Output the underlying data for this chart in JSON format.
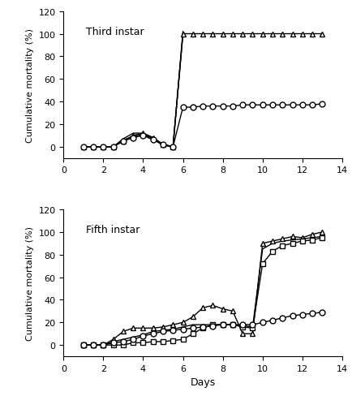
{
  "title_top": "Third instar",
  "title_bottom": "Fifth instar",
  "ylabel": "Cumulative mortality (%)",
  "xlabel": "Days",
  "ylim": [
    -10,
    120
  ],
  "xlim": [
    0,
    14
  ],
  "yticks": [
    0,
    20,
    40,
    60,
    80,
    100,
    120
  ],
  "xticks": [
    0,
    2,
    4,
    6,
    8,
    10,
    12,
    14
  ],
  "top_triangle": {
    "x": [
      1,
      1.5,
      2,
      2.5,
      3,
      3.5,
      4,
      4.5,
      5,
      5.5,
      6,
      6.5,
      7,
      7.5,
      8,
      8.5,
      9,
      9.5,
      10,
      10.5,
      11,
      11.5,
      12,
      12.5,
      13
    ],
    "y": [
      0,
      0,
      0,
      0,
      5,
      10,
      12,
      8,
      2,
      0,
      100,
      100,
      100,
      100,
      100,
      100,
      100,
      100,
      100,
      100,
      100,
      100,
      100,
      100,
      100
    ]
  },
  "top_circle": {
    "x": [
      1,
      1.5,
      2,
      2.5,
      3,
      3.5,
      4,
      4.5,
      5,
      5.5,
      6,
      6.5,
      7,
      7.5,
      8,
      8.5,
      9,
      9.5,
      10,
      10.5,
      11,
      11.5,
      12,
      12.5,
      13
    ],
    "y": [
      0,
      0,
      0,
      0,
      5,
      8,
      10,
      6,
      2,
      0,
      35,
      35,
      36,
      36,
      36,
      36,
      37,
      37,
      37,
      37,
      37,
      37,
      37,
      37,
      38
    ]
  },
  "top_extra1": {
    "x": [
      1,
      1.5,
      2,
      2.5,
      3,
      3.5,
      4,
      4.5,
      5,
      5.5,
      6
    ],
    "y": [
      0,
      0,
      0,
      0,
      7,
      12,
      12,
      8,
      2,
      0,
      102
    ]
  },
  "top_extra2": {
    "x": [
      1,
      1.5,
      2,
      2.5,
      3,
      3.5,
      4,
      4.5,
      5,
      5.5,
      6
    ],
    "y": [
      0,
      0,
      0,
      0,
      6,
      9,
      11,
      7,
      1,
      0,
      101
    ]
  },
  "bot_triangle": {
    "x": [
      1,
      1.5,
      2,
      2.5,
      3,
      3.5,
      4,
      4.5,
      5,
      5.5,
      6,
      6.5,
      7,
      7.5,
      8,
      8.5,
      9,
      9.5,
      10,
      10.5,
      11,
      11.5,
      12,
      12.5,
      13
    ],
    "y": [
      0,
      0,
      0,
      5,
      12,
      15,
      15,
      15,
      16,
      18,
      20,
      25,
      33,
      35,
      32,
      30,
      10,
      10,
      90,
      92,
      94,
      96,
      95,
      98,
      100
    ]
  },
  "bot_square": {
    "x": [
      1,
      1.5,
      2,
      2.5,
      3,
      3.5,
      4,
      4.5,
      5,
      5.5,
      6,
      6.5,
      7,
      7.5,
      8,
      8.5,
      9,
      9.5,
      10,
      10.5,
      11,
      11.5,
      12,
      12.5,
      13
    ],
    "y": [
      0,
      0,
      0,
      0,
      0,
      2,
      2,
      3,
      3,
      4,
      5,
      10,
      15,
      18,
      18,
      18,
      16,
      15,
      72,
      83,
      88,
      90,
      92,
      93,
      95
    ]
  },
  "bot_circle": {
    "x": [
      1,
      1.5,
      2,
      2.5,
      3,
      3.5,
      4,
      4.5,
      5,
      5.5,
      6,
      6.5,
      7,
      7.5,
      8,
      8.5,
      9,
      9.5,
      10,
      10.5,
      11,
      11.5,
      12,
      12.5,
      13
    ],
    "y": [
      0,
      0,
      0,
      2,
      3,
      5,
      8,
      10,
      12,
      13,
      14,
      15,
      16,
      17,
      18,
      18,
      18,
      18,
      20,
      22,
      24,
      26,
      27,
      28,
      29
    ]
  },
  "bot_extra": {
    "x": [
      1,
      1.5,
      2,
      2.5,
      3,
      3.5,
      4,
      4.5,
      5,
      5.5,
      6,
      6.5,
      7,
      7.5,
      8,
      8.5,
      9,
      9.5,
      10,
      10.5,
      11,
      11.5,
      12,
      12.5,
      13
    ],
    "y": [
      0,
      0,
      0,
      3,
      5,
      7,
      9,
      12,
      13,
      14,
      16,
      18,
      18,
      18,
      18,
      18,
      17,
      16,
      85,
      90,
      92,
      93,
      94,
      95,
      96
    ]
  },
  "line_color": "#000000",
  "marker_size": 5,
  "linewidth": 1.0
}
